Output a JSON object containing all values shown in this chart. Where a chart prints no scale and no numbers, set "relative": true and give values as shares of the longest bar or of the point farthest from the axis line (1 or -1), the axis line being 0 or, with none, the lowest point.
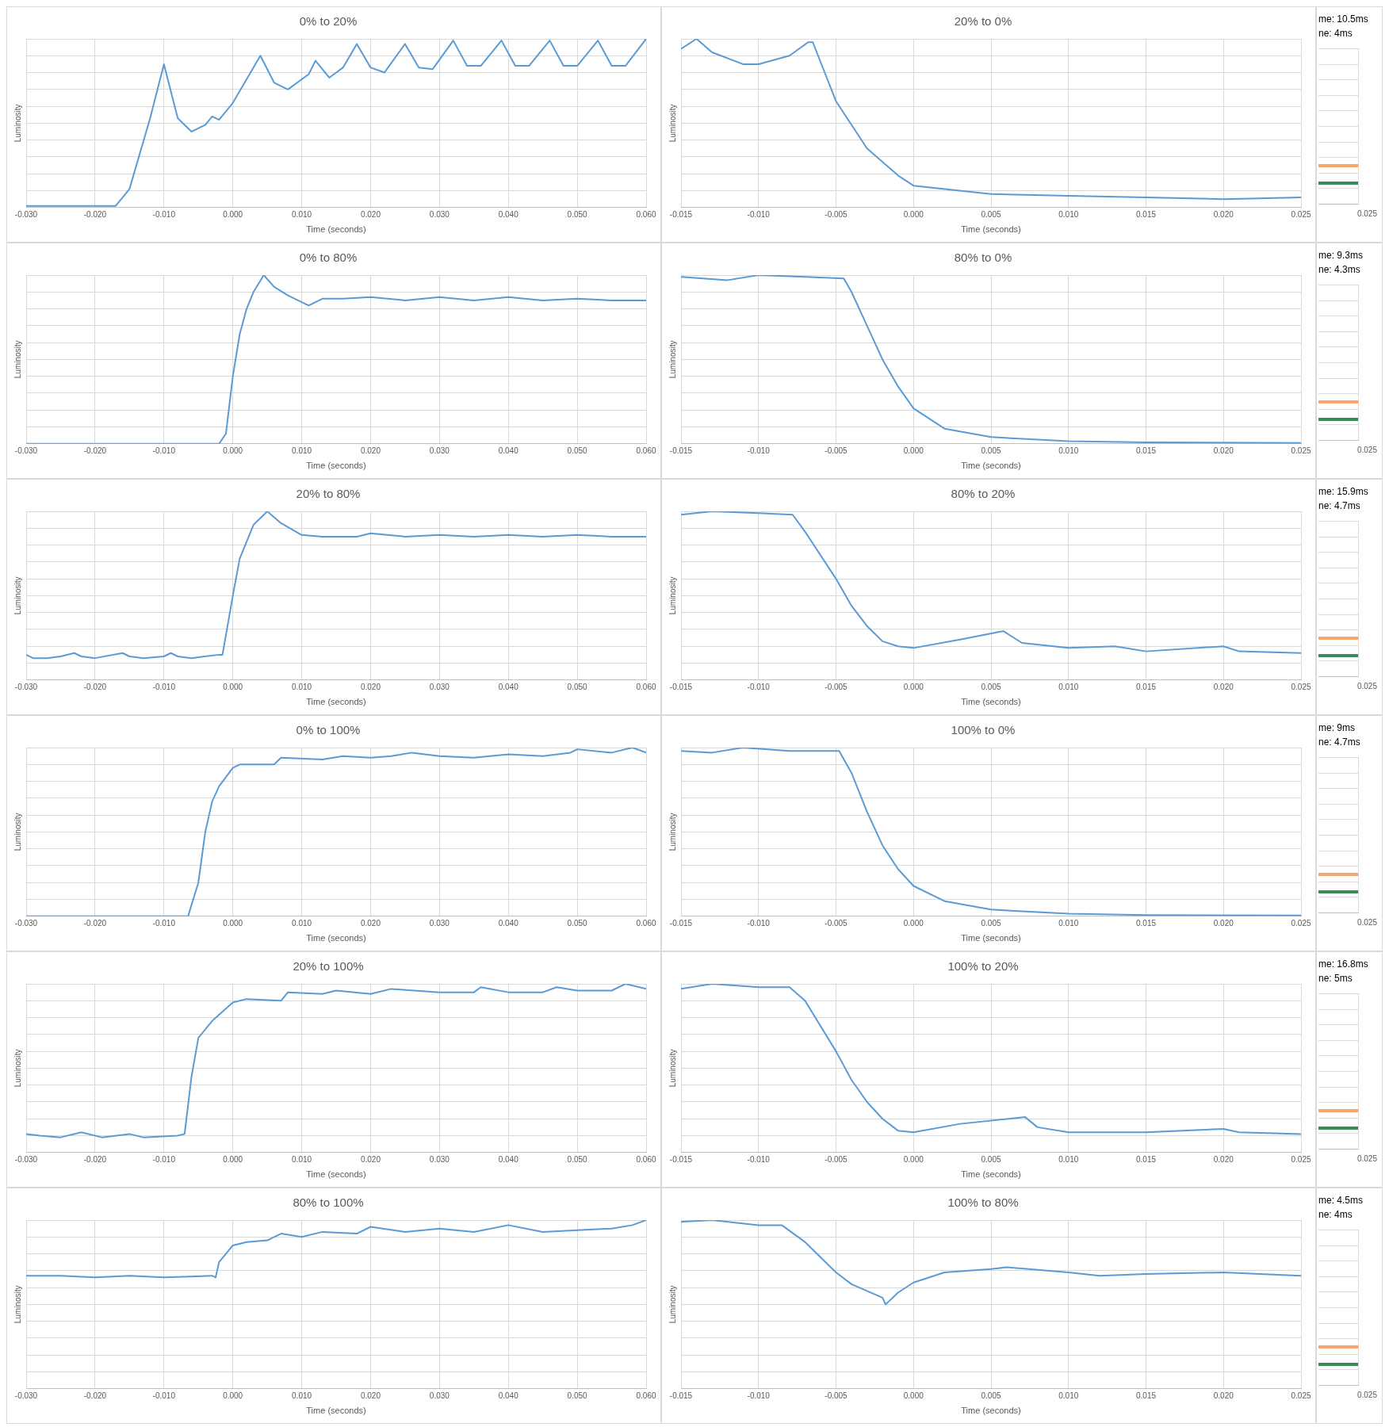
{
  "chart_data": [
    {
      "type": "line",
      "title": "0% to 20%",
      "xlabel": "Time (seconds)",
      "ylabel": "Luminosity",
      "relative": true,
      "grid": true,
      "xlim": [
        -0.03,
        0.06
      ],
      "xticks": [
        {
          "value": -0.03,
          "label": "-0.030"
        },
        {
          "value": -0.02,
          "label": "-0.020"
        },
        {
          "value": -0.01,
          "label": "-0.010"
        },
        {
          "value": 0,
          "label": "0.000"
        },
        {
          "value": 0.01,
          "label": "0.010"
        },
        {
          "value": 0.02,
          "label": "0.020"
        },
        {
          "value": 0.03,
          "label": "0.030"
        },
        {
          "value": 0.04,
          "label": "0.040"
        },
        {
          "value": 0.05,
          "label": "0.050"
        },
        {
          "value": 0.06,
          "label": "0.060"
        }
      ],
      "series": [
        {
          "color": "#5b9bd5",
          "x": [
            -0.03,
            -0.017,
            -0.015,
            -0.012,
            -0.01,
            -0.008,
            -0.006,
            -0.004,
            -0.003,
            -0.002,
            0,
            0.004,
            0.006,
            0.008,
            0.011,
            0.012,
            0.014,
            0.016,
            0.018,
            0.02,
            0.022,
            0.025,
            0.027,
            0.029,
            0.032,
            0.034,
            0.036,
            0.039,
            0.041,
            0.043,
            0.046,
            0.048,
            0.05,
            0.053,
            0.055,
            0.057,
            0.06
          ],
          "values": [
            0.01,
            0.01,
            0.11,
            0.53,
            0.85,
            0.53,
            0.45,
            0.49,
            0.54,
            0.52,
            0.62,
            0.9,
            0.74,
            0.7,
            0.79,
            0.87,
            0.77,
            0.83,
            0.97,
            0.83,
            0.8,
            0.97,
            0.83,
            0.82,
            0.99,
            0.84,
            0.84,
            0.99,
            0.84,
            0.84,
            0.99,
            0.84,
            0.84,
            0.99,
            0.84,
            0.84,
            1
          ]
        }
      ]
    },
    {
      "type": "line",
      "title": "20% to 0%",
      "xlabel": "Time (seconds)",
      "ylabel": "Luminosity",
      "relative": true,
      "grid": true,
      "xlim": [
        -0.015,
        0.025
      ],
      "xticks": [
        {
          "value": -0.015,
          "label": "-0.015"
        },
        {
          "value": -0.01,
          "label": "-0.010"
        },
        {
          "value": -0.005,
          "label": "-0.005"
        },
        {
          "value": 0,
          "label": "0.000"
        },
        {
          "value": 0.005,
          "label": "0.005"
        },
        {
          "value": 0.01,
          "label": "0.010"
        },
        {
          "value": 0.015,
          "label": "0.015"
        },
        {
          "value": 0.02,
          "label": "0.020"
        },
        {
          "value": 0.025,
          "label": "0.025"
        }
      ],
      "series": [
        {
          "color": "#5b9bd5",
          "x": [
            -0.015,
            -0.014,
            -0.013,
            -0.011,
            -0.01,
            -0.008,
            -0.0068,
            -0.0065,
            -0.005,
            -0.003,
            -0.001,
            0,
            0.005,
            0.01,
            0.015,
            0.02,
            0.025
          ],
          "values": [
            0.94,
            1,
            0.92,
            0.85,
            0.85,
            0.9,
            0.98,
            0.98,
            0.63,
            0.35,
            0.19,
            0.13,
            0.08,
            0.07,
            0.06,
            0.05,
            0.06
          ]
        }
      ]
    },
    {
      "type": "other",
      "annotations": [
        "me: 10.5ms",
        "ne: 4ms",
        "0.025"
      ]
    },
    {
      "type": "line",
      "title": "0% to 80%",
      "xlabel": "Time (seconds)",
      "ylabel": "Luminosity",
      "relative": true,
      "grid": true,
      "xlim": [
        -0.03,
        0.06
      ],
      "xticks": [
        {
          "value": -0.03,
          "label": "-0.030"
        },
        {
          "value": -0.02,
          "label": "-0.020"
        },
        {
          "value": -0.01,
          "label": "-0.010"
        },
        {
          "value": 0,
          "label": "0.000"
        },
        {
          "value": 0.01,
          "label": "0.010"
        },
        {
          "value": 0.02,
          "label": "0.020"
        },
        {
          "value": 0.03,
          "label": "0.030"
        },
        {
          "value": 0.04,
          "label": "0.040"
        },
        {
          "value": 0.05,
          "label": "0.050"
        },
        {
          "value": 0.06,
          "label": "0.060"
        }
      ],
      "series": [
        {
          "color": "#5b9bd5",
          "x": [
            -0.03,
            -0.002,
            -0.001,
            0,
            0.001,
            0.002,
            0.003,
            0.0045,
            0.006,
            0.008,
            0.011,
            0.013,
            0.016,
            0.02,
            0.025,
            0.03,
            0.035,
            0.04,
            0.045,
            0.05,
            0.055,
            0.06
          ],
          "values": [
            0,
            0,
            0.06,
            0.4,
            0.65,
            0.8,
            0.9,
            1,
            0.93,
            0.88,
            0.82,
            0.86,
            0.86,
            0.87,
            0.85,
            0.87,
            0.85,
            0.87,
            0.85,
            0.86,
            0.85,
            0.85
          ]
        }
      ]
    },
    {
      "type": "line",
      "title": "80% to 0%",
      "xlabel": "Time (seconds)",
      "ylabel": "Luminosity",
      "relative": true,
      "grid": true,
      "xlim": [
        -0.015,
        0.025
      ],
      "xticks": [
        {
          "value": -0.015,
          "label": "-0.015"
        },
        {
          "value": -0.01,
          "label": "-0.010"
        },
        {
          "value": -0.005,
          "label": "-0.005"
        },
        {
          "value": 0,
          "label": "0.000"
        },
        {
          "value": 0.005,
          "label": "0.005"
        },
        {
          "value": 0.01,
          "label": "0.010"
        },
        {
          "value": 0.015,
          "label": "0.015"
        },
        {
          "value": 0.02,
          "label": "0.020"
        },
        {
          "value": 0.025,
          "label": "0.025"
        }
      ],
      "series": [
        {
          "color": "#5b9bd5",
          "x": [
            -0.015,
            -0.012,
            -0.01,
            -0.007,
            -0.0045,
            -0.004,
            -0.003,
            -0.002,
            -0.001,
            0,
            0.002,
            0.005,
            0.01,
            0.015,
            0.025
          ],
          "values": [
            0.99,
            0.97,
            1,
            0.99,
            0.98,
            0.9,
            0.7,
            0.5,
            0.34,
            0.21,
            0.09,
            0.04,
            0.015,
            0.008,
            0.005
          ]
        }
      ]
    },
    {
      "type": "other",
      "annotations": [
        "me: 9.3ms",
        "ne: 4.3ms",
        "0.025"
      ]
    },
    {
      "type": "line",
      "title": "20% to 80%",
      "xlabel": "Time (seconds)",
      "ylabel": "Luminosity",
      "relative": true,
      "grid": true,
      "xlim": [
        -0.03,
        0.06
      ],
      "xticks": [
        {
          "value": -0.03,
          "label": "-0.030"
        },
        {
          "value": -0.02,
          "label": "-0.020"
        },
        {
          "value": -0.01,
          "label": "-0.010"
        },
        {
          "value": 0,
          "label": "0.000"
        },
        {
          "value": 0.01,
          "label": "0.010"
        },
        {
          "value": 0.02,
          "label": "0.020"
        },
        {
          "value": 0.03,
          "label": "0.030"
        },
        {
          "value": 0.04,
          "label": "0.040"
        },
        {
          "value": 0.05,
          "label": "0.050"
        },
        {
          "value": 0.06,
          "label": "0.060"
        }
      ],
      "series": [
        {
          "color": "#5b9bd5",
          "x": [
            -0.03,
            -0.029,
            -0.027,
            -0.025,
            -0.023,
            -0.022,
            -0.02,
            -0.016,
            -0.015,
            -0.013,
            -0.01,
            -0.009,
            -0.008,
            -0.006,
            -0.002,
            -0.0015,
            0,
            0.001,
            0.003,
            0.005,
            0.007,
            0.01,
            0.013,
            0.018,
            0.02,
            0.025,
            0.03,
            0.035,
            0.04,
            0.045,
            0.05,
            0.055,
            0.06
          ],
          "values": [
            0.15,
            0.13,
            0.13,
            0.14,
            0.16,
            0.14,
            0.13,
            0.16,
            0.14,
            0.13,
            0.14,
            0.16,
            0.14,
            0.13,
            0.15,
            0.15,
            0.5,
            0.72,
            0.92,
            1,
            0.93,
            0.86,
            0.85,
            0.85,
            0.87,
            0.85,
            0.86,
            0.85,
            0.86,
            0.85,
            0.86,
            0.85,
            0.85
          ]
        }
      ]
    },
    {
      "type": "line",
      "title": "80% to 20%",
      "xlabel": "Time (seconds)",
      "ylabel": "Luminosity",
      "relative": true,
      "grid": true,
      "xlim": [
        -0.015,
        0.025
      ],
      "xticks": [
        {
          "value": -0.015,
          "label": "-0.015"
        },
        {
          "value": -0.01,
          "label": "-0.010"
        },
        {
          "value": -0.005,
          "label": "-0.005"
        },
        {
          "value": 0,
          "label": "0.000"
        },
        {
          "value": 0.005,
          "label": "0.005"
        },
        {
          "value": 0.01,
          "label": "0.010"
        },
        {
          "value": 0.015,
          "label": "0.015"
        },
        {
          "value": 0.02,
          "label": "0.020"
        },
        {
          "value": 0.025,
          "label": "0.025"
        }
      ],
      "series": [
        {
          "color": "#5b9bd5",
          "x": [
            -0.015,
            -0.013,
            -0.01,
            -0.0078,
            -0.007,
            -0.005,
            -0.004,
            -0.003,
            -0.002,
            -0.001,
            0,
            0.003,
            0.0058,
            0.007,
            0.01,
            0.013,
            0.015,
            0.02,
            0.021,
            0.025
          ],
          "values": [
            0.98,
            1,
            0.99,
            0.98,
            0.88,
            0.6,
            0.44,
            0.32,
            0.23,
            0.2,
            0.19,
            0.24,
            0.29,
            0.22,
            0.19,
            0.2,
            0.17,
            0.2,
            0.17,
            0.16
          ]
        }
      ]
    },
    {
      "type": "other",
      "annotations": [
        "me: 15.9ms",
        "ne: 4.7ms",
        "0.025"
      ]
    },
    {
      "type": "line",
      "title": "0% to 100%",
      "xlabel": "Time (seconds)",
      "ylabel": "Luminosity",
      "relative": true,
      "grid": true,
      "xlim": [
        -0.03,
        0.06
      ],
      "xticks": [
        {
          "value": -0.03,
          "label": "-0.030"
        },
        {
          "value": -0.02,
          "label": "-0.020"
        },
        {
          "value": -0.01,
          "label": "-0.010"
        },
        {
          "value": 0,
          "label": "0.000"
        },
        {
          "value": 0.01,
          "label": "0.010"
        },
        {
          "value": 0.02,
          "label": "0.020"
        },
        {
          "value": 0.03,
          "label": "0.030"
        },
        {
          "value": 0.04,
          "label": "0.040"
        },
        {
          "value": 0.05,
          "label": "0.050"
        },
        {
          "value": 0.06,
          "label": "0.060"
        }
      ],
      "series": [
        {
          "color": "#5b9bd5",
          "x": [
            -0.03,
            -0.0065,
            -0.005,
            -0.004,
            -0.003,
            -0.002,
            0,
            0.001,
            0.006,
            0.007,
            0.013,
            0.016,
            0.02,
            0.023,
            0.026,
            0.03,
            0.035,
            0.04,
            0.045,
            0.049,
            0.05,
            0.055,
            0.058,
            0.06
          ],
          "values": [
            0,
            0,
            0.2,
            0.5,
            0.68,
            0.77,
            0.88,
            0.9,
            0.9,
            0.94,
            0.93,
            0.95,
            0.94,
            0.95,
            0.97,
            0.95,
            0.94,
            0.96,
            0.95,
            0.97,
            0.99,
            0.97,
            1,
            0.97
          ]
        }
      ]
    },
    {
      "type": "line",
      "title": "100% to 0%",
      "xlabel": "Time (seconds)",
      "ylabel": "Luminosity",
      "relative": true,
      "grid": true,
      "xlim": [
        -0.015,
        0.025
      ],
      "xticks": [
        {
          "value": -0.015,
          "label": "-0.015"
        },
        {
          "value": -0.01,
          "label": "-0.010"
        },
        {
          "value": -0.005,
          "label": "-0.005"
        },
        {
          "value": 0,
          "label": "0.000"
        },
        {
          "value": 0.005,
          "label": "0.005"
        },
        {
          "value": 0.01,
          "label": "0.010"
        },
        {
          "value": 0.015,
          "label": "0.015"
        },
        {
          "value": 0.02,
          "label": "0.020"
        },
        {
          "value": 0.025,
          "label": "0.025"
        }
      ],
      "series": [
        {
          "color": "#5b9bd5",
          "x": [
            -0.015,
            -0.013,
            -0.011,
            -0.008,
            -0.0048,
            -0.004,
            -0.003,
            -0.002,
            -0.001,
            0,
            0.002,
            0.005,
            0.01,
            0.015,
            0.025
          ],
          "values": [
            0.98,
            0.97,
            1,
            0.98,
            0.98,
            0.85,
            0.62,
            0.42,
            0.28,
            0.18,
            0.09,
            0.04,
            0.015,
            0.007,
            0.005
          ]
        }
      ]
    },
    {
      "type": "other",
      "annotations": [
        "me: 9ms",
        "ne: 4.7ms",
        "0.025"
      ]
    },
    {
      "type": "line",
      "title": "20% to 100%",
      "xlabel": "Time (seconds)",
      "ylabel": "Luminosity",
      "relative": true,
      "grid": true,
      "xlim": [
        -0.03,
        0.06
      ],
      "xticks": [
        {
          "value": -0.03,
          "label": "-0.030"
        },
        {
          "value": -0.02,
          "label": "-0.020"
        },
        {
          "value": -0.01,
          "label": "-0.010"
        },
        {
          "value": 0,
          "label": "0.000"
        },
        {
          "value": 0.01,
          "label": "0.010"
        },
        {
          "value": 0.02,
          "label": "0.020"
        },
        {
          "value": 0.03,
          "label": "0.030"
        },
        {
          "value": 0.04,
          "label": "0.040"
        },
        {
          "value": 0.05,
          "label": "0.050"
        },
        {
          "value": 0.06,
          "label": "0.060"
        }
      ],
      "series": [
        {
          "color": "#5b9bd5",
          "x": [
            -0.03,
            -0.028,
            -0.025,
            -0.022,
            -0.019,
            -0.015,
            -0.013,
            -0.008,
            -0.007,
            -0.006,
            -0.005,
            -0.003,
            0,
            0.002,
            0.007,
            0.008,
            0.013,
            0.015,
            0.02,
            0.023,
            0.03,
            0.035,
            0.036,
            0.04,
            0.045,
            0.047,
            0.05,
            0.055,
            0.057,
            0.06
          ],
          "values": [
            0.11,
            0.1,
            0.09,
            0.12,
            0.09,
            0.11,
            0.09,
            0.1,
            0.11,
            0.45,
            0.68,
            0.78,
            0.89,
            0.91,
            0.9,
            0.95,
            0.94,
            0.96,
            0.94,
            0.97,
            0.95,
            0.95,
            0.98,
            0.95,
            0.95,
            0.98,
            0.96,
            0.96,
            1,
            0.97
          ]
        }
      ]
    },
    {
      "type": "line",
      "title": "100% to 20%",
      "xlabel": "Time (seconds)",
      "ylabel": "Luminosity",
      "relative": true,
      "grid": true,
      "xlim": [
        -0.015,
        0.025
      ],
      "xticks": [
        {
          "value": -0.015,
          "label": "-0.015"
        },
        {
          "value": -0.01,
          "label": "-0.010"
        },
        {
          "value": -0.005,
          "label": "-0.005"
        },
        {
          "value": 0,
          "label": "0.000"
        },
        {
          "value": 0.005,
          "label": "0.005"
        },
        {
          "value": 0.01,
          "label": "0.010"
        },
        {
          "value": 0.015,
          "label": "0.015"
        },
        {
          "value": 0.02,
          "label": "0.020"
        },
        {
          "value": 0.025,
          "label": "0.025"
        }
      ],
      "series": [
        {
          "color": "#5b9bd5",
          "x": [
            -0.015,
            -0.013,
            -0.01,
            -0.008,
            -0.007,
            -0.005,
            -0.004,
            -0.003,
            -0.002,
            -0.001,
            0,
            0.003,
            0.0072,
            0.008,
            0.01,
            0.015,
            0.02,
            0.021,
            0.025
          ],
          "values": [
            0.97,
            1,
            0.98,
            0.98,
            0.9,
            0.6,
            0.43,
            0.3,
            0.2,
            0.13,
            0.12,
            0.17,
            0.21,
            0.15,
            0.12,
            0.12,
            0.14,
            0.12,
            0.11
          ]
        }
      ]
    },
    {
      "type": "other",
      "annotations": [
        "me: 16.8ms",
        "ne: 5ms",
        "0.025"
      ]
    },
    {
      "type": "line",
      "title": "80% to 100%",
      "xlabel": "Time (seconds)",
      "ylabel": "Luminosity",
      "relative": true,
      "grid": true,
      "xlim": [
        -0.03,
        0.06
      ],
      "xticks": [
        {
          "value": -0.03,
          "label": "-0.030"
        },
        {
          "value": -0.02,
          "label": "-0.020"
        },
        {
          "value": -0.01,
          "label": "-0.010"
        },
        {
          "value": 0,
          "label": "0.000"
        },
        {
          "value": 0.01,
          "label": "0.010"
        },
        {
          "value": 0.02,
          "label": "0.020"
        },
        {
          "value": 0.03,
          "label": "0.030"
        },
        {
          "value": 0.04,
          "label": "0.040"
        },
        {
          "value": 0.05,
          "label": "0.050"
        },
        {
          "value": 0.06,
          "label": "0.060"
        }
      ],
      "series": [
        {
          "color": "#5b9bd5",
          "x": [
            -0.03,
            -0.025,
            -0.02,
            -0.015,
            -0.01,
            -0.003,
            -0.0025,
            -0.002,
            0,
            0.002,
            0.005,
            0.007,
            0.01,
            0.013,
            0.018,
            0.02,
            0.025,
            0.03,
            0.035,
            0.04,
            0.045,
            0.05,
            0.055,
            0.058,
            0.06
          ],
          "values": [
            0.67,
            0.67,
            0.66,
            0.67,
            0.66,
            0.67,
            0.66,
            0.75,
            0.85,
            0.87,
            0.88,
            0.92,
            0.9,
            0.93,
            0.92,
            0.96,
            0.93,
            0.95,
            0.93,
            0.97,
            0.93,
            0.94,
            0.95,
            0.97,
            1
          ]
        }
      ]
    },
    {
      "type": "line",
      "title": "100% to 80%",
      "xlabel": "Time (seconds)",
      "ylabel": "Luminosity",
      "relative": true,
      "grid": true,
      "xlim": [
        -0.015,
        0.025
      ],
      "xticks": [
        {
          "value": -0.015,
          "label": "-0.015"
        },
        {
          "value": -0.01,
          "label": "-0.010"
        },
        {
          "value": -0.005,
          "label": "-0.005"
        },
        {
          "value": 0,
          "label": "0.000"
        },
        {
          "value": 0.005,
          "label": "0.005"
        },
        {
          "value": 0.01,
          "label": "0.010"
        },
        {
          "value": 0.015,
          "label": "0.015"
        },
        {
          "value": 0.02,
          "label": "0.020"
        },
        {
          "value": 0.025,
          "label": "0.025"
        }
      ],
      "series": [
        {
          "color": "#5b9bd5",
          "x": [
            -0.015,
            -0.013,
            -0.01,
            -0.0085,
            -0.007,
            -0.005,
            -0.004,
            -0.003,
            -0.002,
            -0.0018,
            -0.001,
            0,
            0.002,
            0.005,
            0.006,
            0.01,
            0.012,
            0.015,
            0.02,
            0.025
          ],
          "values": [
            0.99,
            1,
            0.97,
            0.97,
            0.87,
            0.69,
            0.62,
            0.58,
            0.54,
            0.5,
            0.57,
            0.63,
            0.69,
            0.71,
            0.72,
            0.69,
            0.67,
            0.68,
            0.69,
            0.67
          ]
        }
      ]
    },
    {
      "type": "other",
      "annotations": [
        "me: 4.5ms",
        "ne: 4ms",
        "0.025"
      ]
    }
  ]
}
